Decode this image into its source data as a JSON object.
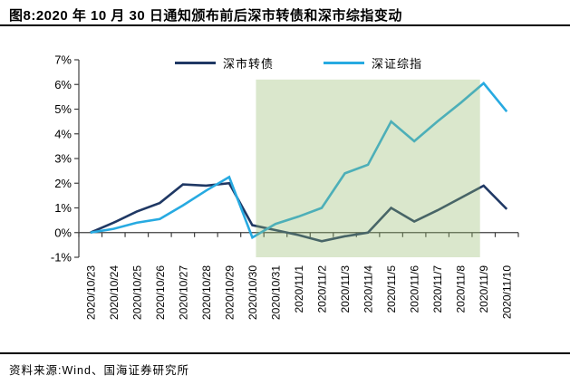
{
  "figure": {
    "title": "图8:2020 年 10 月 30 日通知颁布前后深市转债和深市综指变动",
    "source": "资料来源:Wind、国海证券研究所"
  },
  "chart_data": {
    "type": "line",
    "title": "",
    "xlabel": "",
    "ylabel": "",
    "categories": [
      "2020/10/23",
      "2020/10/24",
      "2020/10/25",
      "2020/10/26",
      "2020/10/27",
      "2020/10/28",
      "2020/10/29",
      "2020/10/30",
      "2020/10/31",
      "2020/11/1",
      "2020/11/2",
      "2020/11/3",
      "2020/11/4",
      "2020/11/5",
      "2020/11/6",
      "2020/11/7",
      "2020/11/8",
      "2020/11/9",
      "2020/11/10"
    ],
    "series": [
      {
        "name": "深市转债",
        "color": "#1f3864",
        "values": [
          0,
          0.4,
          0.85,
          1.2,
          1.95,
          1.9,
          2.0,
          0.3,
          0.1,
          -0.1,
          -0.35,
          -0.15,
          0.0,
          1.0,
          0.45,
          0.9,
          1.4,
          1.9,
          0.95
        ]
      },
      {
        "name": "深证综指",
        "color": "#27aae1",
        "values": [
          0,
          0.15,
          0.4,
          0.55,
          1.1,
          1.7,
          2.25,
          -0.2,
          0.35,
          0.65,
          1.0,
          2.4,
          2.75,
          4.5,
          3.7,
          4.5,
          5.25,
          6.05,
          4.9
        ]
      }
    ],
    "ylim": [
      -1,
      7
    ],
    "ytick_values": [
      7,
      6,
      5,
      4,
      3,
      2,
      1,
      0,
      -1
    ],
    "ytick_labels": [
      "7%",
      "6%",
      "5%",
      "4%",
      "3%",
      "2%",
      "1%",
      "0%",
      "-1%"
    ],
    "grid": false,
    "legend_position": "top-center",
    "axis_color": "#3f3f3f",
    "highlight_region": {
      "from": "2020/10/30",
      "to": "2020/11/9",
      "value_top": 6.2,
      "value_bottom": -1,
      "color": "rgb(150,185,110)",
      "opacity": 0.35
    }
  }
}
